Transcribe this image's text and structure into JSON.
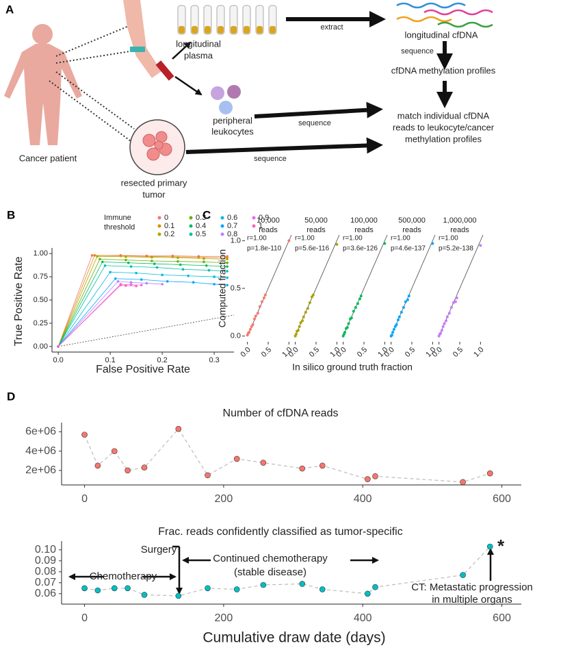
{
  "figure": {
    "labels": [
      "A",
      "B",
      "C",
      "D"
    ]
  },
  "diagram": {
    "cancer_patient": "Cancer patient",
    "plasma": [
      "longitudinal",
      "plasma"
    ],
    "extract": "extract",
    "cfdna": "longitudinal cfDNA",
    "sequence_1": "sequence",
    "profiles": "cfDNA methylation profiles",
    "leukocytes": [
      "peripheral",
      "leukocytes"
    ],
    "sequence_2": "sequence",
    "match": [
      "match individual cfDNA",
      "reads to leukocyte/cancer",
      "methylation profiles"
    ],
    "tumor": [
      "resected primary",
      "tumor"
    ],
    "sequence_3": "sequence"
  },
  "chart_data": [
    {
      "type": "line",
      "xlabel": "False Positive Rate",
      "ylabel": "True Positive Rate",
      "legend_title": [
        "Immune",
        "threshold"
      ],
      "diagonal": "dotted",
      "xlim": [
        -0.012,
        0.338
      ],
      "ylim": [
        -0.06,
        1.06
      ],
      "xticks": [
        {
          "value": 0,
          "label": "0.0"
        },
        0.1,
        0.2,
        0.3
      ],
      "yticks": [
        {
          "value": 0,
          "label": "0.00"
        },
        0.25,
        {
          "value": 0.5,
          "label": "0.50"
        },
        0.75,
        {
          "value": 1,
          "label": "1.00"
        }
      ],
      "series": [
        {
          "name": "0",
          "color": "#F8766D",
          "x": [
            0,
            0.065,
            0.12,
            0.17,
            0.22,
            0.27,
            0.325
          ],
          "values": [
            0,
            0.98,
            0.98,
            0.975,
            0.975,
            0.97,
            0.97
          ]
        },
        {
          "name": "0.1",
          "color": "#DB8E00",
          "x": [
            0,
            0.07,
            0.12,
            0.17,
            0.22,
            0.27,
            0.325
          ],
          "values": [
            0,
            0.98,
            0.975,
            0.97,
            0.965,
            0.96,
            0.955
          ]
        },
        {
          "name": "0.2",
          "color": "#AEA200",
          "x": [
            0,
            0.075,
            0.13,
            0.18,
            0.23,
            0.28,
            0.325
          ],
          "values": [
            0,
            0.97,
            0.965,
            0.96,
            0.955,
            0.945,
            0.94
          ]
        },
        {
          "name": "0.3",
          "color": "#64B200",
          "x": [
            0,
            0.08,
            0.13,
            0.18,
            0.23,
            0.28,
            0.325
          ],
          "values": [
            0,
            0.94,
            0.93,
            0.92,
            0.915,
            0.91,
            0.9
          ]
        },
        {
          "name": "0.4",
          "color": "#00BD5C",
          "x": [
            0,
            0.085,
            0.135,
            0.185,
            0.235,
            0.285,
            0.325
          ],
          "values": [
            0,
            0.91,
            0.9,
            0.89,
            0.88,
            0.87,
            0.86
          ]
        },
        {
          "name": "0.5",
          "color": "#00C1A7",
          "x": [
            0,
            0.09,
            0.14,
            0.19,
            0.24,
            0.29,
            0.325
          ],
          "values": [
            0,
            0.87,
            0.86,
            0.85,
            0.83,
            0.82,
            0.81
          ]
        },
        {
          "name": "0.6",
          "color": "#00BADE",
          "x": [
            0,
            0.1,
            0.15,
            0.2,
            0.25,
            0.3,
            0.325
          ],
          "values": [
            0,
            0.8,
            0.79,
            0.77,
            0.76,
            0.75,
            0.74
          ]
        },
        {
          "name": "0.7",
          "color": "#00A6FF",
          "x": [
            0,
            0.11,
            0.16,
            0.21,
            0.26,
            0.3,
            0.325
          ],
          "values": [
            0,
            0.73,
            0.72,
            0.7,
            0.69,
            0.67,
            0.66
          ]
        },
        {
          "name": "0.8",
          "color": "#B385FF",
          "x": [
            0,
            0.115,
            0.14,
            0.17,
            0.2
          ],
          "values": [
            0,
            0.7,
            0.69,
            0.68,
            0.67
          ]
        },
        {
          "name": "0.9",
          "color": "#EF67EB",
          "x": [
            0,
            0.12,
            0.14,
            0.16
          ],
          "values": [
            0,
            0.67,
            0.665,
            0.66
          ]
        },
        {
          "name": "1",
          "color": "#FF63B6",
          "x": [
            0,
            0.12,
            0.13,
            0.15
          ],
          "values": [
            0,
            0.66,
            0.655,
            0.65
          ]
        }
      ]
    },
    {
      "type": "scatter",
      "title": [
        "10,000",
        "reads"
      ],
      "annotations": [
        "r=1.00",
        "p=1.8e-110"
      ],
      "ylabel": "Computed fraction",
      "color": "#F8766D",
      "diagonal": "solid",
      "xlim": [
        -0.06,
        1.06
      ],
      "ylim": [
        -0.06,
        1.06
      ],
      "xticks": [
        {
          "value": 0,
          "label": "0.0"
        },
        0.5,
        {
          "value": 1,
          "label": "1.0"
        }
      ],
      "yticks": [
        {
          "value": 0,
          "label": "0.0"
        },
        0.5,
        {
          "value": 1,
          "label": "1.0"
        }
      ],
      "x": [
        0,
        0.02,
        0.04,
        0.07,
        0.1,
        0.13,
        0.17,
        0.2,
        0.25,
        0.3,
        0.35,
        0.4,
        0.43,
        1.0
      ],
      "values": [
        0.01,
        0.03,
        0.04,
        0.07,
        0.1,
        0.12,
        0.18,
        0.21,
        0.24,
        0.31,
        0.36,
        0.4,
        0.43,
        1.0
      ]
    },
    {
      "type": "scatter",
      "title": [
        "50,000",
        "reads"
      ],
      "annotations": [
        "r=1.00",
        "p=5.6e-116"
      ],
      "color": "#AEA200",
      "diagonal": "solid",
      "xlim": [
        -0.06,
        1.06
      ],
      "ylim": [
        -0.06,
        1.06
      ],
      "xticks": [
        {
          "value": 0,
          "label": "0.0"
        },
        0.5,
        {
          "value": 1,
          "label": "1.0"
        }
      ],
      "x": [
        0,
        0.02,
        0.04,
        0.07,
        0.1,
        0.13,
        0.17,
        0.2,
        0.25,
        0.3,
        0.35,
        0.4,
        0.43,
        1.0
      ],
      "values": [
        0,
        0.02,
        0.05,
        0.06,
        0.1,
        0.14,
        0.16,
        0.2,
        0.25,
        0.29,
        0.35,
        0.41,
        0.43,
        0.96
      ]
    },
    {
      "type": "scatter",
      "title": [
        "100,000",
        "reads"
      ],
      "annotations": [
        "r=1.00",
        "p=3.6e-126"
      ],
      "xlabel": "In silico ground truth fraction",
      "color": "#00BD5C",
      "diagonal": "solid",
      "xlim": [
        -0.06,
        1.06
      ],
      "ylim": [
        -0.06,
        1.06
      ],
      "xticks": [
        {
          "value": 0,
          "label": "0.0"
        },
        0.5,
        {
          "value": 1,
          "label": "1.0"
        }
      ],
      "x": [
        0,
        0.02,
        0.04,
        0.07,
        0.1,
        0.13,
        0.17,
        0.2,
        0.25,
        0.3,
        0.35,
        0.4,
        0.43,
        1.0
      ],
      "values": [
        0,
        0.02,
        0.04,
        0.08,
        0.09,
        0.13,
        0.18,
        0.19,
        0.26,
        0.3,
        0.34,
        0.39,
        0.42,
        0.97
      ]
    },
    {
      "type": "scatter",
      "title": [
        "500,000",
        "reads"
      ],
      "annotations": [
        "r=1.00",
        "p=4.6e-137"
      ],
      "color": "#00A6FF",
      "diagonal": "solid",
      "xlim": [
        -0.06,
        1.06
      ],
      "ylim": [
        -0.06,
        1.06
      ],
      "xticks": [
        {
          "value": 0,
          "label": "0.0"
        },
        0.5,
        {
          "value": 1,
          "label": "1.0"
        }
      ],
      "x": [
        0,
        0.02,
        0.04,
        0.07,
        0.1,
        0.13,
        0.17,
        0.2,
        0.25,
        0.3,
        0.35,
        0.4,
        0.43,
        1.0
      ],
      "values": [
        0,
        0.01,
        0.04,
        0.07,
        0.1,
        0.12,
        0.17,
        0.2,
        0.25,
        0.3,
        0.36,
        0.38,
        0.42,
        0.97
      ]
    },
    {
      "type": "scatter",
      "title": [
        "1,000,000",
        "reads"
      ],
      "annotations": [
        "r=1.00",
        "p=5.2e-138"
      ],
      "color": "#C77CFF",
      "diagonal": "solid",
      "xlim": [
        -0.06,
        1.06
      ],
      "ylim": [
        -0.06,
        1.06
      ],
      "xticks": [
        {
          "value": 0,
          "label": "0.0"
        },
        0.5,
        {
          "value": 1,
          "label": "1.0"
        }
      ],
      "x": [
        0,
        0.02,
        0.04,
        0.07,
        0.1,
        0.13,
        0.17,
        0.2,
        0.25,
        0.3,
        0.35,
        0.4,
        0.43,
        1.0
      ],
      "values": [
        0,
        0.02,
        0.03,
        0.06,
        0.1,
        0.13,
        0.16,
        0.2,
        0.24,
        0.3,
        0.35,
        0.36,
        0.4,
        0.95
      ]
    },
    {
      "type": "line",
      "title": "Number of cfDNA reads",
      "color": "#F8766D",
      "line_style": "dashed",
      "xlim": [
        -33,
        628
      ],
      "ylim": [
        500000,
        6950000
      ],
      "xticks": [
        0,
        200,
        400,
        600
      ],
      "yticks": [
        {
          "value": 2000000,
          "label": "2e+06"
        },
        {
          "value": 4000000,
          "label": "4e+06"
        },
        {
          "value": 6000000,
          "label": "6e+06"
        }
      ],
      "x": [
        0,
        19,
        43,
        62,
        86,
        135,
        177,
        219,
        257,
        313,
        342,
        407,
        418,
        544,
        583
      ],
      "values": [
        5700000,
        2500000,
        4000000,
        2000000,
        2300000,
        6300000,
        1500000,
        3200000,
        2800000,
        2200000,
        2500000,
        1100000,
        1400000,
        800000,
        1700000
      ]
    },
    {
      "type": "line",
      "title": "Frac. reads confidently classified as tumor-specific",
      "xlabel": "Cumulative draw date (days)",
      "color": "#00BFC4",
      "line_style": "dashed",
      "annotations": [
        "Surgery",
        "Chemotherapy",
        "Continued chemotherapy",
        "(stable disease)",
        "CT: Metastatic progression",
        "in multiple organs",
        "*"
      ],
      "xlim": [
        -33,
        628
      ],
      "ylim": [
        0.0505,
        0.108
      ],
      "xticks": [
        0,
        200,
        400,
        600
      ],
      "yticks": [
        0.06,
        0.07,
        0.08,
        0.09,
        {
          "value": 0.1,
          "label": "0.10"
        }
      ],
      "x": [
        0,
        19,
        43,
        62,
        86,
        135,
        177,
        219,
        257,
        313,
        342,
        407,
        418,
        544,
        583
      ],
      "values": [
        0.065,
        0.063,
        0.065,
        0.065,
        0.059,
        0.058,
        0.065,
        0.064,
        0.068,
        0.069,
        0.064,
        0.06,
        0.066,
        0.077,
        0.103
      ]
    }
  ]
}
